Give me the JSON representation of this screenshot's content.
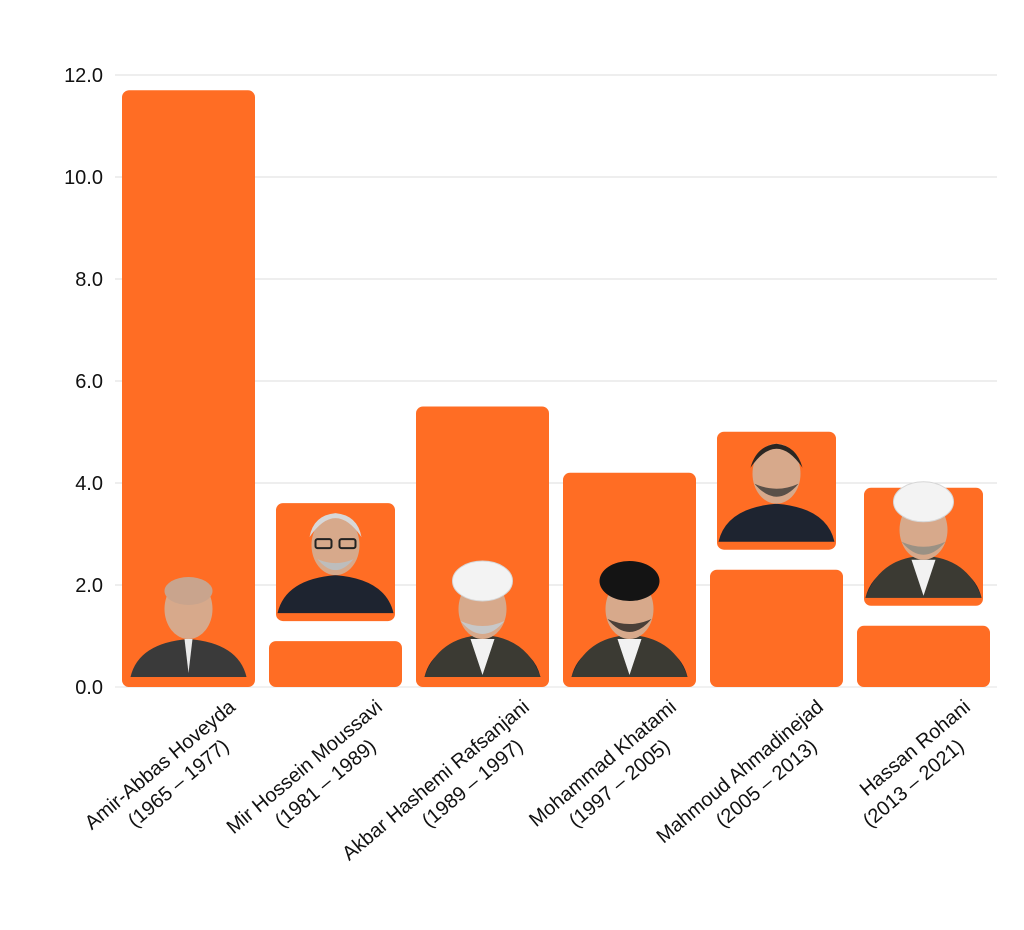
{
  "colors": {
    "bar": "#ff6d24",
    "grid": "#dcdcdc",
    "text": "#111111",
    "portrait_bg": "#ff6d24"
  },
  "chart_data": {
    "type": "bar",
    "title": "",
    "xlabel": "",
    "ylabel": "",
    "ylim": [
      0,
      12
    ],
    "y_ticks": [
      "0.0",
      "2.0",
      "4.0",
      "6.0",
      "8.0",
      "10.0",
      "12.0"
    ],
    "grid": true,
    "categories": [
      {
        "name": "Amir-Abbas Hoveyda",
        "years": "(1965 – 1977)"
      },
      {
        "name": "Mir Hossein Moussavi",
        "years": "(1981 – 1989)"
      },
      {
        "name": "Akbar Hashemi Rafsanjani",
        "years": "(1989 – 1997)"
      },
      {
        "name": "Mohammad Khatami",
        "years": "(1997 – 2005)"
      },
      {
        "name": "Mahmoud Ahmadinejad",
        "years": "(2005 – 2013)"
      },
      {
        "name": "Hassan Rohani",
        "years": "(2013 – 2021)"
      }
    ],
    "values": [
      11.7,
      0.9,
      5.5,
      4.2,
      2.3,
      1.2
    ],
    "portraits": [
      {
        "icon": "portrait-icon",
        "style": "bald-suit",
        "placement": "inside-bar"
      },
      {
        "icon": "portrait-icon",
        "style": "gray-hair-glasses",
        "placement": "above-bar"
      },
      {
        "icon": "portrait-icon",
        "style": "white-turban",
        "placement": "inside-bar"
      },
      {
        "icon": "portrait-icon",
        "style": "black-turban",
        "placement": "inside-bar"
      },
      {
        "icon": "portrait-icon",
        "style": "dark-hair-beard",
        "placement": "above-bar"
      },
      {
        "icon": "portrait-icon",
        "style": "white-turban-beard",
        "placement": "above-bar"
      }
    ]
  }
}
